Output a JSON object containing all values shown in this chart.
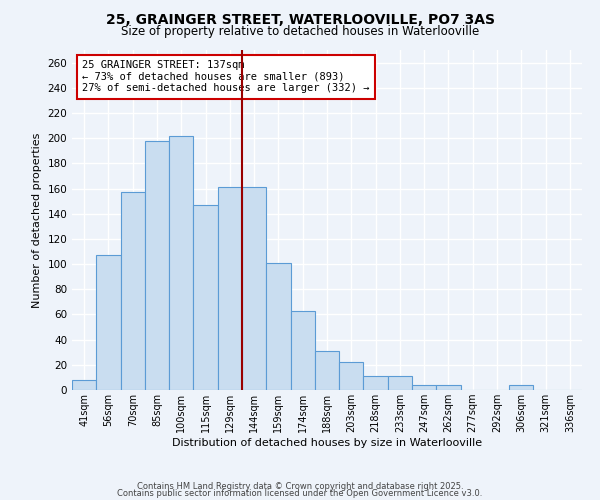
{
  "title": "25, GRAINGER STREET, WATERLOOVILLE, PO7 3AS",
  "subtitle": "Size of property relative to detached houses in Waterlooville",
  "xlabel": "Distribution of detached houses by size in Waterlooville",
  "ylabel": "Number of detached properties",
  "bar_labels": [
    "41sqm",
    "56sqm",
    "70sqm",
    "85sqm",
    "100sqm",
    "115sqm",
    "129sqm",
    "144sqm",
    "159sqm",
    "174sqm",
    "188sqm",
    "203sqm",
    "218sqm",
    "233sqm",
    "247sqm",
    "262sqm",
    "277sqm",
    "292sqm",
    "306sqm",
    "321sqm",
    "336sqm"
  ],
  "bar_values": [
    8,
    107,
    157,
    198,
    202,
    147,
    161,
    161,
    101,
    63,
    31,
    22,
    11,
    11,
    4,
    4,
    0,
    0,
    4,
    0,
    0
  ],
  "bar_color": "#c9ddf0",
  "bar_edge_color": "#5b9bd5",
  "bg_color": "#eef3fa",
  "grid_color": "#d0daea",
  "vline_x_idx": 6.5,
  "vline_color": "#990000",
  "annotation_title": "25 GRAINGER STREET: 137sqm",
  "annotation_line1": "← 73% of detached houses are smaller (893)",
  "annotation_line2": "27% of semi-detached houses are larger (332) →",
  "annotation_box_color": "#ffffff",
  "annotation_border_color": "#cc0000",
  "ylim": [
    0,
    270
  ],
  "yticks": [
    0,
    20,
    40,
    60,
    80,
    100,
    120,
    140,
    160,
    180,
    200,
    220,
    240,
    260
  ],
  "footer1": "Contains HM Land Registry data © Crown copyright and database right 2025.",
  "footer2": "Contains public sector information licensed under the Open Government Licence v3.0."
}
